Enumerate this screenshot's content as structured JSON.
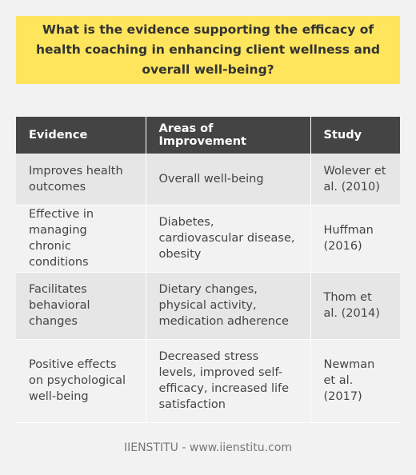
{
  "question": "What is the evidence supporting the efficacy of health coaching in enhancing client wellness and overall well-being?",
  "table": {
    "headers": [
      "Evidence",
      "Areas of Improvement",
      "Study"
    ],
    "rows": [
      [
        "Improves health outcomes",
        "Overall well-being",
        "Wolever et al. (2010)"
      ],
      [
        "Effective in managing chronic conditions",
        "Diabetes, cardiovascular disease, obesity",
        "Huffman (2016)"
      ],
      [
        "Facilitates behavioral changes",
        "Dietary changes, physical activity, medication adherence",
        "Thom et al. (2014)"
      ],
      [
        "Positive effects on psychological well-being",
        "Decreased stress levels, improved self-efficacy, increased life satisfaction",
        "Newman et al. (2017)"
      ]
    ]
  },
  "footer": "IIENSTITU - www.iienstitu.com",
  "colors": {
    "question_bg": "#fee55c",
    "header_bg": "#444444",
    "row_alt_bg": "#e6e6e6",
    "page_bg": "#f2f2f2"
  }
}
